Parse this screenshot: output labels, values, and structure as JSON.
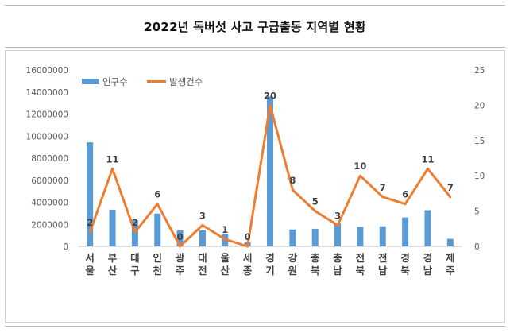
{
  "title": "2022년 독버섯 사고 구급출동 지역별 현황",
  "chart_data": {
    "type": "bar+line",
    "categories": [
      "서울",
      "부산",
      "대구",
      "인천",
      "광주",
      "대전",
      "울산",
      "세종",
      "경기",
      "강원",
      "충북",
      "충남",
      "전북",
      "전남",
      "경북",
      "경남",
      "제주"
    ],
    "series": [
      {
        "name": "인구수",
        "type": "bar",
        "axis": "left",
        "color": "#5b9bd5",
        "values": [
          9430000,
          3320000,
          2360000,
          2970000,
          1440000,
          1450000,
          1110000,
          380000,
          13600000,
          1530000,
          1590000,
          2120000,
          1770000,
          1820000,
          2620000,
          3280000,
          680000
        ]
      },
      {
        "name": "발생건수",
        "type": "line",
        "axis": "right",
        "color": "#ed7d31",
        "values": [
          2,
          11,
          2,
          6,
          0,
          3,
          1,
          0,
          20,
          8,
          5,
          3,
          10,
          7,
          6,
          11,
          7
        ]
      }
    ],
    "left_axis": {
      "min": 0,
      "max": 16000000,
      "ticks": [
        "0",
        "2000000",
        "4000000",
        "6000000",
        "8000000",
        "10000000",
        "12000000",
        "14000000",
        "16000000"
      ]
    },
    "right_axis": {
      "min": 0,
      "max": 25,
      "ticks": [
        "0",
        "5",
        "10",
        "15",
        "20",
        "25"
      ]
    },
    "legend_position": "top-left",
    "grid": false
  }
}
